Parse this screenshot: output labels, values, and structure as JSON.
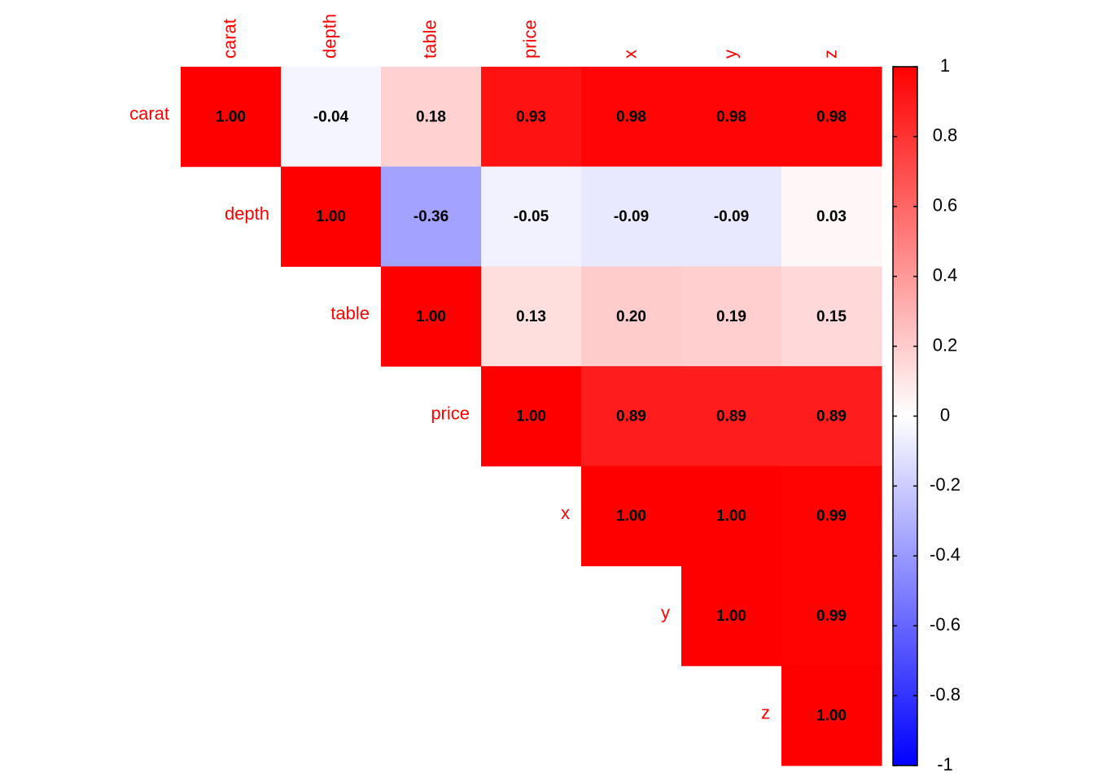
{
  "chart_data": {
    "type": "heatmap",
    "variables": [
      "carat",
      "depth",
      "table",
      "price",
      "x",
      "y",
      "z"
    ],
    "values": [
      [
        1,
        -0.04,
        0.18,
        0.93,
        0.98,
        0.98,
        0.98
      ],
      [
        null,
        1,
        -0.36,
        -0.05,
        -0.09,
        -0.09,
        0.03
      ],
      [
        null,
        null,
        1,
        0.13,
        0.2,
        0.19,
        0.15
      ],
      [
        null,
        null,
        null,
        1,
        0.89,
        0.89,
        0.89
      ],
      [
        null,
        null,
        null,
        null,
        1,
        1,
        0.99
      ],
      [
        null,
        null,
        null,
        null,
        null,
        1,
        0.99
      ],
      [
        null,
        null,
        null,
        null,
        null,
        null,
        1
      ]
    ],
    "value_labels": [
      [
        "1.00",
        "-0.04",
        "0.18",
        "0.93",
        "0.98",
        "0.98",
        "0.98"
      ],
      [
        null,
        "1.00",
        "-0.36",
        "-0.05",
        "-0.09",
        "-0.09",
        "0.03"
      ],
      [
        null,
        null,
        "1.00",
        "0.13",
        "0.20",
        "0.19",
        "0.15"
      ],
      [
        null,
        null,
        null,
        "1.00",
        "0.89",
        "0.89",
        "0.89"
      ],
      [
        null,
        null,
        null,
        null,
        "1.00",
        "1.00",
        "0.99"
      ],
      [
        null,
        null,
        null,
        null,
        null,
        "1.00",
        "0.99"
      ],
      [
        null,
        null,
        null,
        null,
        null,
        null,
        "1.00"
      ]
    ],
    "colors": {
      "low": "#0000ff",
      "mid": "#ffffff",
      "high": "#ff0000"
    },
    "label_color": "#ff0000",
    "ylim": [
      -1,
      1
    ],
    "yticks": [
      -1,
      -0.8,
      -0.6,
      -0.4,
      -0.2,
      0,
      0.2,
      0.4,
      0.6,
      0.8,
      1
    ]
  }
}
